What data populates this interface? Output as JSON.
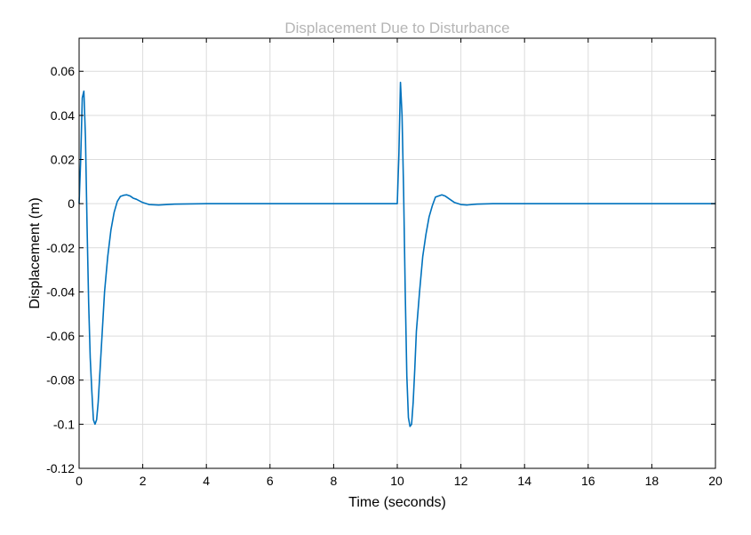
{
  "chart_data": {
    "type": "line",
    "title": "Displacement Due to Disturbance",
    "xlabel": "Time (seconds)",
    "ylabel": "Displacement (m)",
    "xlim": [
      0,
      20
    ],
    "ylim": [
      -0.12,
      0.075
    ],
    "xticks": [
      0,
      2,
      4,
      6,
      8,
      10,
      12,
      14,
      16,
      18,
      20
    ],
    "xtick_labels": [
      "0",
      "2",
      "4",
      "6",
      "8",
      "10",
      "12",
      "14",
      "16",
      "18",
      "20"
    ],
    "yticks": [
      0.06,
      0.04,
      0.02,
      0,
      -0.02,
      -0.04,
      -0.06,
      -0.08,
      -0.1,
      -0.12
    ],
    "ytick_labels": [
      "0.06",
      "0.04",
      "0.02",
      "0",
      "-0.02",
      "-0.04",
      "-0.06",
      "-0.08",
      "-0.1",
      "-0.12"
    ],
    "grid": true,
    "colors": {
      "series": "#0072bd",
      "grid": "#dcdcdc",
      "title": "#b5b5b5"
    },
    "series": [
      {
        "x": [
          0,
          0.05,
          0.1,
          0.15,
          0.2,
          0.25,
          0.3,
          0.35,
          0.4,
          0.45,
          0.5,
          0.55,
          0.6,
          0.7,
          0.8,
          0.9,
          1.0,
          1.1,
          1.2,
          1.3,
          1.4,
          1.5,
          1.6,
          1.7,
          1.8,
          2.0,
          2.2,
          2.5,
          3.0,
          4.0,
          6.0,
          8.0,
          9.98,
          10.0,
          10.05,
          10.1,
          10.15,
          10.2,
          10.25,
          10.3,
          10.35,
          10.4,
          10.45,
          10.5,
          10.55,
          10.6,
          10.7,
          10.8,
          10.9,
          11.0,
          11.1,
          11.2,
          11.3,
          11.4,
          11.5,
          11.6,
          11.7,
          11.8,
          12.0,
          12.2,
          12.5,
          13.0,
          14.0,
          16.0,
          18.0,
          20.0
        ],
        "y": [
          0,
          0.02,
          0.048,
          0.051,
          0.03,
          -0.01,
          -0.045,
          -0.07,
          -0.085,
          -0.098,
          -0.1,
          -0.098,
          -0.09,
          -0.065,
          -0.04,
          -0.024,
          -0.012,
          -0.004,
          0.001,
          0.0033,
          0.0038,
          0.004,
          0.0035,
          0.0025,
          0.002,
          0.0005,
          -0.0004,
          -0.0006,
          -0.0002,
          0,
          0,
          0,
          0,
          0,
          0.022,
          0.055,
          0.04,
          0.005,
          -0.04,
          -0.078,
          -0.097,
          -0.101,
          -0.1,
          -0.09,
          -0.075,
          -0.058,
          -0.04,
          -0.024,
          -0.014,
          -0.006,
          -0.001,
          0.003,
          0.0035,
          0.004,
          0.0035,
          0.0025,
          0.0015,
          0.0005,
          -0.0004,
          -0.0006,
          -0.0002,
          0,
          0,
          0,
          0,
          0
        ]
      }
    ]
  }
}
